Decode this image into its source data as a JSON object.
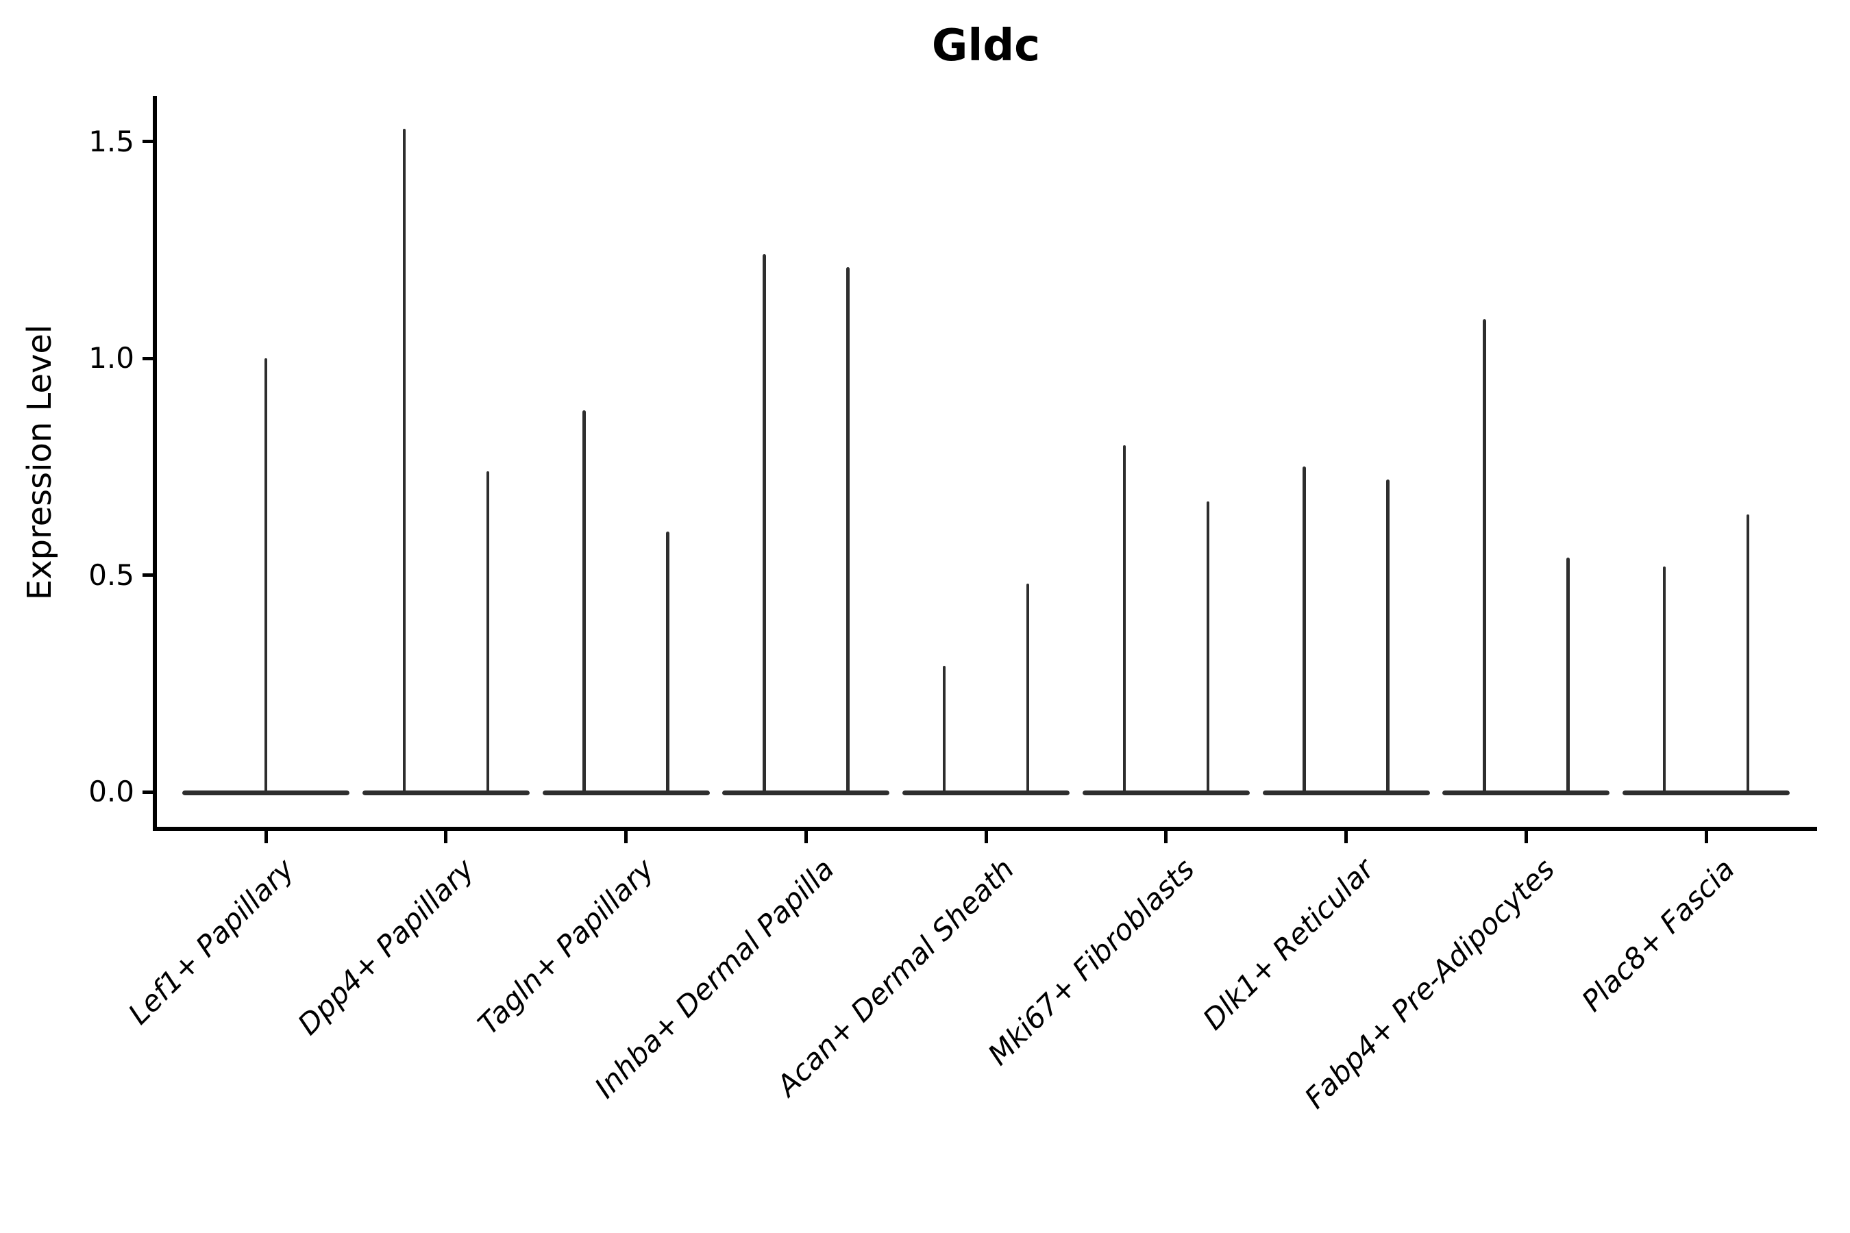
{
  "chart_data": {
    "type": "violin",
    "title": "Gldc",
    "ylabel": "Expression Level",
    "xlabel": "",
    "ytick_values": [
      0,
      0.5,
      1,
      1.5
    ],
    "ytick_labels": [
      "0.0",
      "0.5",
      "1.0",
      "1.5"
    ],
    "ylim": [
      -0.09,
      1.63
    ],
    "grid": false,
    "legend_position": "none",
    "categories": [
      "Lef1+ Papillary",
      "Dpp4+ Papillary",
      "Tagln+ Papillary",
      "Inhba+ Dermal Papilla",
      "Acan+ Dermal Sheath",
      "Mki67+ Fibroblasts",
      "Dlk1+ Reticular",
      "Fabp4+ Pre-Adipocytes",
      "Plac8+ Fascia"
    ],
    "violins": [
      {
        "category": "Lef1+ Papillary",
        "spike_maxima": [
          1.0
        ]
      },
      {
        "category": "Dpp4+ Papillary",
        "spike_maxima": [
          1.53,
          0.74
        ]
      },
      {
        "category": "Tagln+ Papillary",
        "spike_maxima": [
          0.88,
          0.6
        ]
      },
      {
        "category": "Inhba+ Dermal Papilla",
        "spike_maxima": [
          1.24,
          1.21
        ]
      },
      {
        "category": "Acan+ Dermal Sheath",
        "spike_maxima": [
          0.29,
          0.48
        ]
      },
      {
        "category": "Mki67+ Fibroblasts",
        "spike_maxima": [
          0.8,
          0.67
        ]
      },
      {
        "category": "Dlk1+ Reticular",
        "spike_maxima": [
          0.75,
          0.72
        ]
      },
      {
        "category": "Fabp4+ Pre-Adipocytes",
        "spike_maxima": [
          1.09,
          0.54
        ]
      },
      {
        "category": "Plac8+ Fascia",
        "spike_maxima": [
          0.52,
          0.64
        ]
      }
    ],
    "description": "Violin densities collapse to a flat line at 0 expression with a thin spike up to each group's maximum expression value; two dodged violins per category (one centered violin for Lef1+ Papillary).",
    "style": {
      "violin_color": "#2e2e2e",
      "axis_color": "#000000",
      "background": "#ffffff"
    }
  }
}
